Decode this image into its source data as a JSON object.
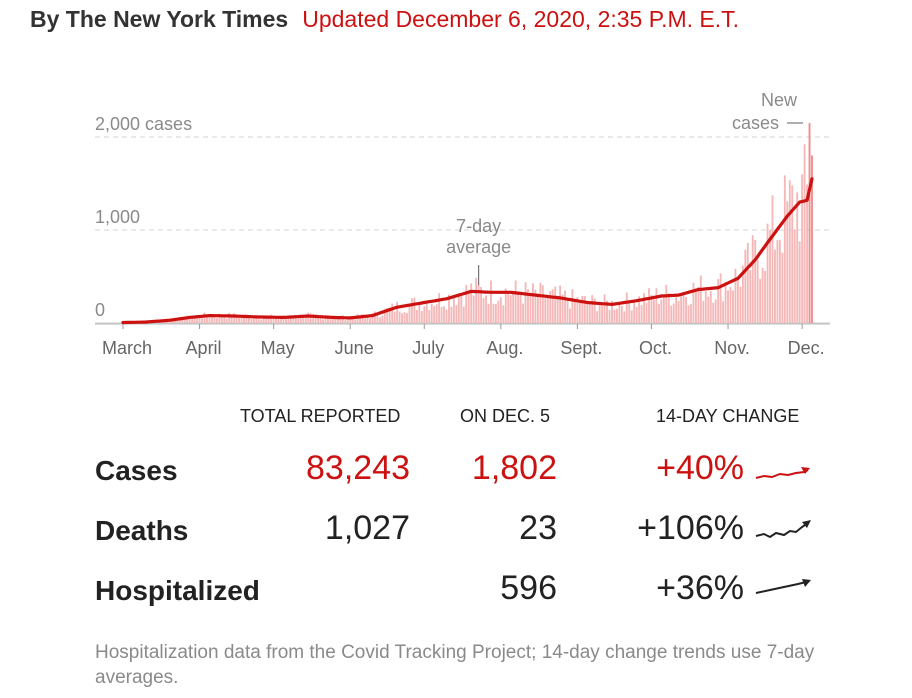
{
  "header": {
    "byline": "By The New York Times",
    "updated": "Updated December 6, 2020, 2:35 P.M. E.T."
  },
  "colors": {
    "accent": "#cc1111",
    "bar": "#f3b0b0",
    "text": "#222222",
    "muted": "#8a8a8a"
  },
  "chart_data": {
    "type": "bar",
    "title": "",
    "y_ticks": [
      "2,000 cases",
      "1,000",
      "0"
    ],
    "y_tick_values": [
      2000,
      1000,
      0
    ],
    "ylim": [
      0,
      2200
    ],
    "x_tick_labels": [
      "March",
      "April",
      "May",
      "June",
      "July",
      "Aug.",
      "Sept.",
      "Oct.",
      "Nov.",
      "Dec."
    ],
    "x_range": [
      "2020-03-01",
      "2020-12-05"
    ],
    "grid": "dashed horizontal",
    "annotations": [
      {
        "text_lines": [
          "7-day",
          "average"
        ],
        "date": "2020-07-23"
      },
      {
        "text_lines": [
          "New",
          "cases"
        ],
        "date": "2020-12-05"
      }
    ],
    "series": [
      {
        "name": "New cases",
        "kind": "daily bars"
      },
      {
        "name": "7-day average",
        "kind": "line",
        "points": [
          [
            "2020-03-01",
            5
          ],
          [
            "2020-03-10",
            10
          ],
          [
            "2020-03-20",
            30
          ],
          [
            "2020-03-28",
            60
          ],
          [
            "2020-04-05",
            80
          ],
          [
            "2020-04-15",
            75
          ],
          [
            "2020-04-25",
            65
          ],
          [
            "2020-05-05",
            60
          ],
          [
            "2020-05-15",
            75
          ],
          [
            "2020-05-25",
            60
          ],
          [
            "2020-06-01",
            55
          ],
          [
            "2020-06-10",
            80
          ],
          [
            "2020-06-20",
            170
          ],
          [
            "2020-07-01",
            220
          ],
          [
            "2020-07-10",
            260
          ],
          [
            "2020-07-20",
            340
          ],
          [
            "2020-07-28",
            330
          ],
          [
            "2020-08-05",
            330
          ],
          [
            "2020-08-15",
            300
          ],
          [
            "2020-08-25",
            270
          ],
          [
            "2020-09-05",
            220
          ],
          [
            "2020-09-15",
            200
          ],
          [
            "2020-09-25",
            240
          ],
          [
            "2020-10-05",
            290
          ],
          [
            "2020-10-12",
            300
          ],
          [
            "2020-10-20",
            360
          ],
          [
            "2020-10-28",
            380
          ],
          [
            "2020-11-05",
            480
          ],
          [
            "2020-11-12",
            680
          ],
          [
            "2020-11-18",
            900
          ],
          [
            "2020-11-25",
            1150
          ],
          [
            "2020-11-30",
            1300
          ],
          [
            "2020-12-03",
            1320
          ],
          [
            "2020-12-05",
            1550
          ]
        ]
      }
    ]
  },
  "stats": {
    "headers": [
      "TOTAL REPORTED",
      "ON DEC. 5",
      "14-DAY CHANGE"
    ],
    "rows": [
      {
        "label": "Cases",
        "total": "83,243",
        "on_day": "1,802",
        "change": "+40%",
        "color": "#cc1111"
      },
      {
        "label": "Deaths",
        "total": "1,027",
        "on_day": "23",
        "change": "+106%",
        "color": "#222222"
      },
      {
        "label": "Hospitalized",
        "total": "",
        "on_day": "596",
        "change": "+36%",
        "color": "#222222"
      }
    ]
  },
  "footnote": "Hospitalization data from the Covid Tracking Project; 14-day change trends use 7-day averages."
}
